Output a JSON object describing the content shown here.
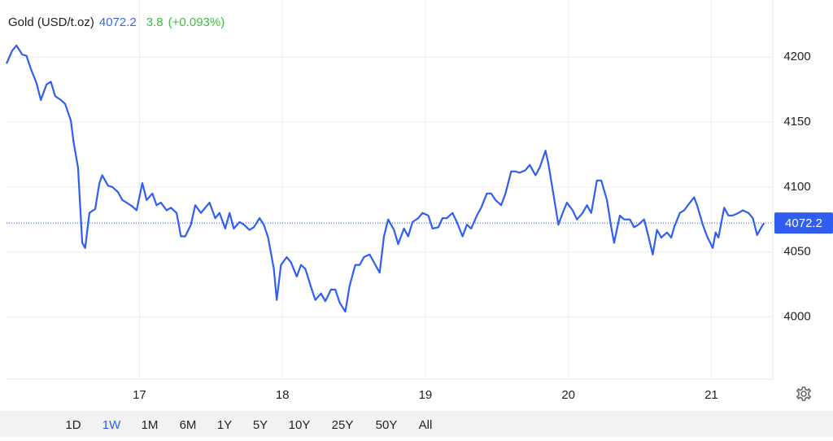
{
  "chart_data": {
    "type": "line",
    "title": "Gold (USD/t.oz)",
    "last_price": 4072.2,
    "change": 3.8,
    "change_pct": "(+0.093%)",
    "x": [
      16.07,
      16.11,
      16.14,
      16.18,
      16.21,
      16.24,
      16.28,
      16.31,
      16.35,
      16.38,
      16.41,
      16.45,
      16.48,
      16.52,
      16.54,
      16.57,
      16.6,
      16.62,
      16.65,
      16.69,
      16.72,
      16.74,
      16.78,
      16.81,
      16.85,
      16.88,
      16.91,
      16.95,
      16.98,
      17.02,
      17.05,
      17.09,
      17.12,
      17.15,
      17.19,
      17.22,
      17.26,
      17.29,
      17.32,
      17.36,
      17.39,
      17.43,
      17.46,
      17.49,
      17.53,
      17.56,
      17.6,
      17.63,
      17.66,
      17.7,
      17.73,
      17.77,
      17.8,
      17.84,
      17.87,
      17.9,
      17.94,
      17.96,
      17.99,
      18.03,
      18.06,
      18.1,
      18.13,
      18.16,
      18.2,
      18.23,
      18.27,
      18.3,
      18.34,
      18.37,
      18.4,
      18.44,
      18.47,
      18.51,
      18.54,
      18.57,
      18.61,
      18.64,
      18.68,
      18.71,
      18.74,
      18.78,
      18.81,
      18.85,
      18.88,
      18.91,
      18.95,
      18.98,
      19.02,
      19.05,
      19.09,
      19.12,
      19.15,
      19.19,
      19.22,
      19.26,
      19.29,
      19.32,
      19.36,
      19.39,
      19.43,
      19.46,
      19.49,
      19.53,
      19.56,
      19.6,
      19.63,
      19.66,
      19.7,
      19.73,
      19.77,
      19.8,
      19.84,
      19.86,
      19.89,
      19.93,
      19.96,
      19.99,
      20.03,
      20.06,
      20.1,
      20.13,
      20.16,
      20.2,
      20.23,
      20.27,
      20.3,
      20.32,
      20.36,
      20.39,
      20.43,
      20.46,
      20.49,
      20.53,
      20.56,
      20.59,
      20.62,
      20.65,
      20.69,
      20.72,
      20.74,
      20.78,
      20.81,
      20.85,
      20.88,
      20.9,
      20.94,
      20.97,
      21.01,
      21.03,
      21.05,
      21.09,
      21.12,
      21.15,
      21.19,
      21.22,
      21.26,
      21.29,
      21.32,
      21.36,
      21.37
    ],
    "series": [
      {
        "name": "Gold",
        "color": "#2f5ef0",
        "values": [
          4195,
          4205,
          4209,
          4202,
          4201,
          4191,
          4180,
          4167,
          4179,
          4181,
          4170,
          4167,
          4164,
          4151,
          4134,
          4115,
          4057,
          4053,
          4080,
          4083,
          4103,
          4109,
          4101,
          4100,
          4096,
          4090,
          4088,
          4085,
          4082,
          4103,
          4090,
          4095,
          4086,
          4088,
          4082,
          4084,
          4080,
          4062,
          4062,
          4071,
          4086,
          4080,
          4084,
          4088,
          4076,
          4080,
          4068,
          4080,
          4068,
          4073,
          4071,
          4067,
          4069,
          4076,
          4071,
          4061,
          4037,
          4013,
          4040,
          4046,
          4042,
          4031,
          4040,
          4037,
          4023,
          4013,
          4018,
          4012,
          4021,
          4021,
          4011,
          4004,
          4024,
          4040,
          4040,
          4046,
          4048,
          4042,
          4034,
          4062,
          4075,
          4067,
          4056,
          4068,
          4062,
          4073,
          4076,
          4080,
          4078,
          4068,
          4069,
          4076,
          4076,
          4080,
          4073,
          4062,
          4071,
          4068,
          4078,
          4084,
          4095,
          4095,
          4090,
          4086,
          4095,
          4112,
          4112,
          4111,
          4113,
          4117,
          4109,
          4115,
          4128,
          4118,
          4098,
          4071,
          4080,
          4088,
          4082,
          4075,
          4080,
          4086,
          4080,
          4105,
          4105,
          4090,
          4069,
          4057,
          4078,
          4075,
          4075,
          4069,
          4071,
          4075,
          4062,
          4048,
          4067,
          4061,
          4065,
          4061,
          4069,
          4080,
          4082,
          4088,
          4092,
          4086,
          4071,
          4062,
          4053,
          4065,
          4061,
          4084,
          4078,
          4078,
          4080,
          4082,
          4080,
          4076,
          4063,
          4071,
          4072.2
        ]
      }
    ],
    "xlim": [
      16.07,
      21.43
    ],
    "xticks": [
      17,
      18,
      19,
      20,
      21
    ],
    "ylim": [
      3952,
      4244
    ],
    "yticks": [
      4000,
      4050,
      4100,
      4150,
      4200
    ],
    "grid": true,
    "ranges": [
      "1D",
      "1W",
      "1M",
      "6M",
      "1Y",
      "5Y",
      "10Y",
      "25Y",
      "50Y",
      "All"
    ],
    "active_range": 1
  }
}
